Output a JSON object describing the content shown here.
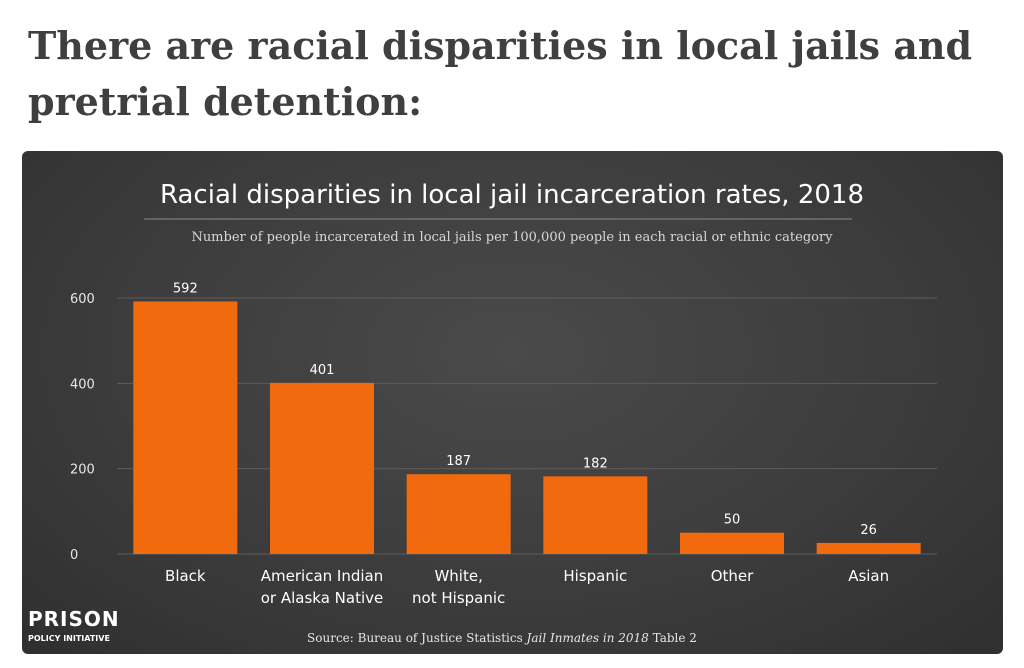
{
  "page": {
    "heading": "There are racial disparities in local jails and pretrial detention:"
  },
  "chart_data": {
    "type": "bar",
    "title": "Racial disparities in local jail incarceration rates, 2018",
    "subtitle": "Number of people incarcerated in local jails per 100,000 people in each racial or ethnic category",
    "categories": [
      [
        "Black"
      ],
      [
        "American Indian",
        "or Alaska Native"
      ],
      [
        "White,",
        "not Hispanic"
      ],
      [
        "Hispanic"
      ],
      [
        "Other"
      ],
      [
        "Asian"
      ]
    ],
    "values": [
      592,
      401,
      187,
      182,
      50,
      26
    ],
    "data_labels": [
      "592",
      "401",
      "187",
      "182",
      "50",
      "26"
    ],
    "yticks": [
      0,
      200,
      400,
      600
    ],
    "ylim": [
      0,
      600
    ],
    "grid": true,
    "bar_color": "#f26a0e",
    "source": {
      "prefix": "Source: Bureau of Justice Statistics ",
      "publication": "Jail Inmates in 2018",
      "suffix": " Table 2"
    }
  },
  "logo": {
    "main": "PRISON",
    "sub": "POLICY INITIATIVE"
  },
  "colors": {
    "heading": "#3f3f3f",
    "card_background": "#3b3b3b",
    "bar": "#f26a0e"
  }
}
